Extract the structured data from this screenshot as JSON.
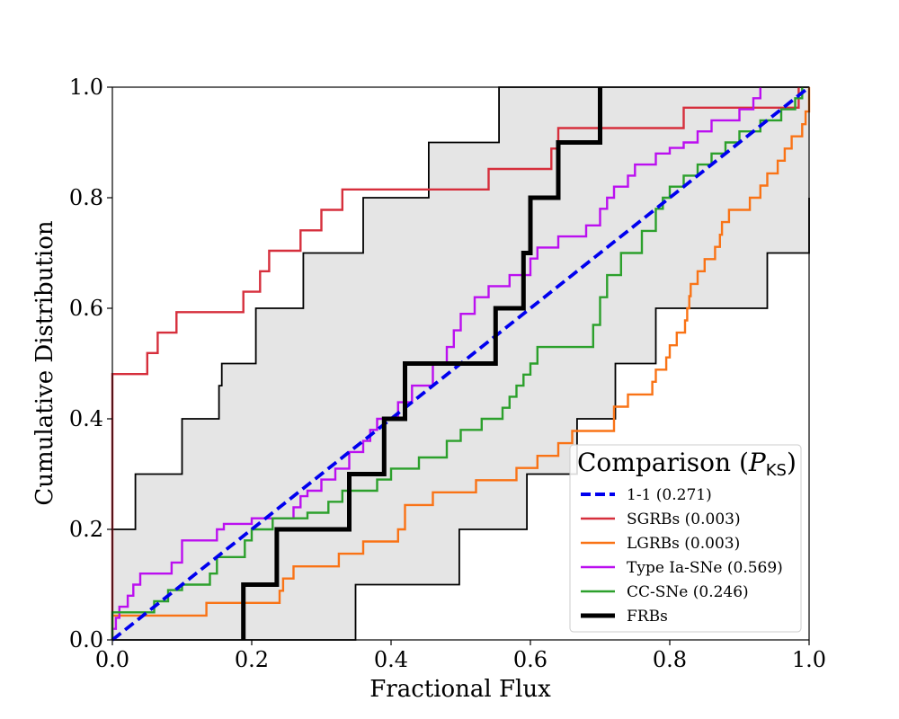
{
  "chart_data": {
    "type": "line",
    "xlabel": "Fractional Flux",
    "ylabel": "Cumulative Distribution",
    "xlim": [
      0.0,
      1.0
    ],
    "ylim": [
      0.0,
      1.0
    ],
    "x_ticks": [
      "0.0",
      "0.2",
      "0.4",
      "0.6",
      "0.8",
      "1.0"
    ],
    "y_ticks": [
      "0.0",
      "0.2",
      "0.4",
      "0.6",
      "0.8",
      "1.0"
    ],
    "grid": false,
    "legend": {
      "placement": "lower-right",
      "title": "Comparison (",
      "title_math": "P",
      "title_sub": "KS",
      "title_close": ")",
      "entries": [
        {
          "key": "one_to_one",
          "label": "1-1 (0.271)"
        },
        {
          "key": "sgrb",
          "label": "SGRBs (0.003)"
        },
        {
          "key": "lgrb",
          "label": "LGRBs (0.003)"
        },
        {
          "key": "ia",
          "label": "Type Ia-SNe (0.569)"
        },
        {
          "key": "ccsn",
          "label": "CC-SNe (0.246)"
        },
        {
          "key": "frb",
          "label": "FRBs"
        }
      ]
    },
    "colors": {
      "one_to_one": "#0000ee",
      "sgrb": "#d62f3c",
      "lgrb": "#f97316",
      "ia": "#bb0ff0",
      "ccsn": "#2ca02c",
      "frb": "#000000",
      "band_fill": "#e5e5e5",
      "band_edge": "#000000"
    },
    "confidence_band": {
      "upper": [
        [
          0.0,
          0.2
        ],
        [
          0.033,
          0.3
        ],
        [
          0.1,
          0.4
        ],
        [
          0.153,
          0.46
        ],
        [
          0.157,
          0.5
        ],
        [
          0.206,
          0.6
        ],
        [
          0.274,
          0.7
        ],
        [
          0.36,
          0.8
        ],
        [
          0.454,
          0.9
        ],
        [
          0.555,
          1.0
        ],
        [
          1.0,
          1.0
        ]
      ],
      "lower": [
        [
          0.0,
          0.0
        ],
        [
          0.349,
          0.1
        ],
        [
          0.498,
          0.2
        ],
        [
          0.595,
          0.3
        ],
        [
          0.667,
          0.4
        ],
        [
          0.722,
          0.5
        ],
        [
          0.78,
          0.6
        ],
        [
          0.94,
          0.7
        ],
        [
          1.0,
          0.8
        ]
      ]
    },
    "series": [
      {
        "key": "one_to_one",
        "name": "1-1",
        "style": "dashed",
        "points": [
          [
            0.0,
            0.0
          ],
          [
            1.0,
            1.0
          ]
        ]
      },
      {
        "key": "sgrb",
        "name": "SGRBs",
        "style": "step",
        "points": [
          [
            0.0,
            0.0
          ],
          [
            0.0,
            0.481
          ],
          [
            0.05,
            0.519
          ],
          [
            0.065,
            0.556
          ],
          [
            0.092,
            0.593
          ],
          [
            0.188,
            0.63
          ],
          [
            0.212,
            0.667
          ],
          [
            0.225,
            0.704
          ],
          [
            0.27,
            0.741
          ],
          [
            0.3,
            0.778
          ],
          [
            0.33,
            0.815
          ],
          [
            0.54,
            0.852
          ],
          [
            0.63,
            0.889
          ],
          [
            0.64,
            0.926
          ],
          [
            0.82,
            0.963
          ],
          [
            0.985,
            1.0
          ]
        ]
      },
      {
        "key": "lgrb",
        "name": "LGRBs",
        "style": "step",
        "points": [
          [
            0.0,
            0.0
          ],
          [
            0.0,
            0.044
          ],
          [
            0.135,
            0.067
          ],
          [
            0.24,
            0.089
          ],
          [
            0.245,
            0.111
          ],
          [
            0.26,
            0.133
          ],
          [
            0.325,
            0.156
          ],
          [
            0.36,
            0.178
          ],
          [
            0.41,
            0.2
          ],
          [
            0.42,
            0.222
          ],
          [
            0.42,
            0.244
          ],
          [
            0.46,
            0.267
          ],
          [
            0.522,
            0.289
          ],
          [
            0.58,
            0.311
          ],
          [
            0.61,
            0.333
          ],
          [
            0.64,
            0.356
          ],
          [
            0.66,
            0.378
          ],
          [
            0.72,
            0.4
          ],
          [
            0.72,
            0.422
          ],
          [
            0.74,
            0.444
          ],
          [
            0.775,
            0.467
          ],
          [
            0.78,
            0.489
          ],
          [
            0.795,
            0.511
          ],
          [
            0.8,
            0.533
          ],
          [
            0.81,
            0.556
          ],
          [
            0.822,
            0.578
          ],
          [
            0.825,
            0.6
          ],
          [
            0.828,
            0.622
          ],
          [
            0.83,
            0.644
          ],
          [
            0.84,
            0.667
          ],
          [
            0.85,
            0.689
          ],
          [
            0.865,
            0.711
          ],
          [
            0.872,
            0.733
          ],
          [
            0.875,
            0.756
          ],
          [
            0.885,
            0.778
          ],
          [
            0.915,
            0.8
          ],
          [
            0.93,
            0.822
          ],
          [
            0.94,
            0.844
          ],
          [
            0.955,
            0.867
          ],
          [
            0.965,
            0.889
          ],
          [
            0.975,
            0.911
          ],
          [
            0.99,
            0.933
          ],
          [
            0.995,
            0.956
          ],
          [
            1.0,
            1.0
          ]
        ]
      },
      {
        "key": "ia",
        "name": "Type Ia-SNe",
        "style": "step",
        "points": [
          [
            0.0,
            0.0
          ],
          [
            0.0,
            0.02
          ],
          [
            0.005,
            0.04
          ],
          [
            0.01,
            0.06
          ],
          [
            0.022,
            0.08
          ],
          [
            0.03,
            0.1
          ],
          [
            0.04,
            0.12
          ],
          [
            0.085,
            0.14
          ],
          [
            0.1,
            0.16
          ],
          [
            0.1,
            0.18
          ],
          [
            0.15,
            0.2
          ],
          [
            0.16,
            0.21
          ],
          [
            0.2,
            0.22
          ],
          [
            0.26,
            0.24
          ],
          [
            0.27,
            0.26
          ],
          [
            0.28,
            0.27
          ],
          [
            0.3,
            0.29
          ],
          [
            0.32,
            0.31
          ],
          [
            0.34,
            0.34
          ],
          [
            0.36,
            0.36
          ],
          [
            0.37,
            0.38
          ],
          [
            0.38,
            0.4
          ],
          [
            0.41,
            0.43
          ],
          [
            0.43,
            0.46
          ],
          [
            0.46,
            0.5
          ],
          [
            0.48,
            0.53
          ],
          [
            0.49,
            0.56
          ],
          [
            0.5,
            0.59
          ],
          [
            0.52,
            0.62
          ],
          [
            0.54,
            0.64
          ],
          [
            0.57,
            0.66
          ],
          [
            0.6,
            0.69
          ],
          [
            0.61,
            0.71
          ],
          [
            0.64,
            0.73
          ],
          [
            0.68,
            0.75
          ],
          [
            0.7,
            0.78
          ],
          [
            0.71,
            0.8
          ],
          [
            0.72,
            0.82
          ],
          [
            0.74,
            0.84
          ],
          [
            0.75,
            0.86
          ],
          [
            0.78,
            0.88
          ],
          [
            0.8,
            0.89
          ],
          [
            0.82,
            0.9
          ],
          [
            0.84,
            0.92
          ],
          [
            0.86,
            0.94
          ],
          [
            0.9,
            0.96
          ],
          [
            0.92,
            0.98
          ],
          [
            0.93,
            1.0
          ]
        ]
      },
      {
        "key": "ccsn",
        "name": "CC-SNe",
        "style": "step",
        "points": [
          [
            0.0,
            0.0
          ],
          [
            0.0,
            0.05
          ],
          [
            0.06,
            0.07
          ],
          [
            0.08,
            0.09
          ],
          [
            0.1,
            0.1
          ],
          [
            0.14,
            0.12
          ],
          [
            0.15,
            0.15
          ],
          [
            0.19,
            0.18
          ],
          [
            0.2,
            0.2
          ],
          [
            0.23,
            0.22
          ],
          [
            0.28,
            0.23
          ],
          [
            0.31,
            0.25
          ],
          [
            0.33,
            0.27
          ],
          [
            0.38,
            0.29
          ],
          [
            0.4,
            0.31
          ],
          [
            0.44,
            0.33
          ],
          [
            0.48,
            0.36
          ],
          [
            0.5,
            0.38
          ],
          [
            0.53,
            0.4
          ],
          [
            0.56,
            0.42
          ],
          [
            0.57,
            0.44
          ],
          [
            0.58,
            0.46
          ],
          [
            0.59,
            0.48
          ],
          [
            0.6,
            0.5
          ],
          [
            0.61,
            0.53
          ],
          [
            0.69,
            0.57
          ],
          [
            0.7,
            0.62
          ],
          [
            0.71,
            0.66
          ],
          [
            0.73,
            0.7
          ],
          [
            0.76,
            0.74
          ],
          [
            0.78,
            0.78
          ],
          [
            0.79,
            0.8
          ],
          [
            0.8,
            0.82
          ],
          [
            0.82,
            0.84
          ],
          [
            0.84,
            0.86
          ],
          [
            0.86,
            0.88
          ],
          [
            0.88,
            0.9
          ],
          [
            0.9,
            0.92
          ],
          [
            0.93,
            0.94
          ],
          [
            0.96,
            0.96
          ],
          [
            0.98,
            0.98
          ],
          [
            0.99,
            1.0
          ]
        ]
      },
      {
        "key": "frb",
        "name": "FRBs",
        "style": "step",
        "points": [
          [
            0.188,
            0.0
          ],
          [
            0.188,
            0.1
          ],
          [
            0.236,
            0.2
          ],
          [
            0.34,
            0.3
          ],
          [
            0.39,
            0.4
          ],
          [
            0.42,
            0.5
          ],
          [
            0.55,
            0.6
          ],
          [
            0.59,
            0.7
          ],
          [
            0.6,
            0.8
          ],
          [
            0.64,
            0.9
          ],
          [
            0.7,
            1.0
          ]
        ]
      }
    ]
  }
}
